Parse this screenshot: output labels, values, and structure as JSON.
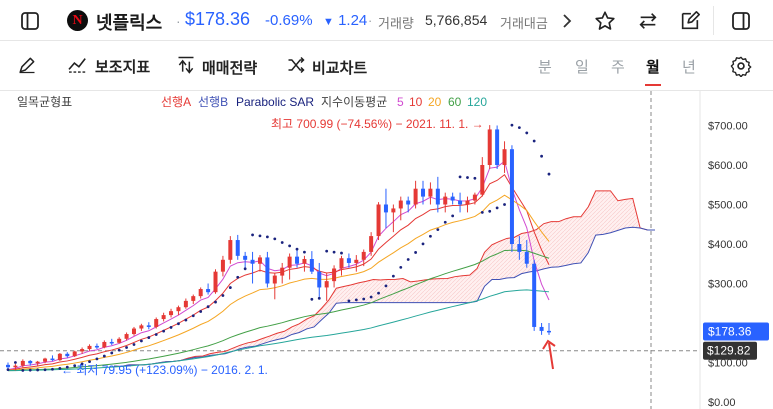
{
  "header": {
    "stock_name": "넷플릭스",
    "price": "$178.36",
    "change_pct": "-0.69%",
    "change_arrow": "▼",
    "change_abs": "1.24",
    "dot": "·",
    "volume_label": "거래량",
    "volume_value": "5,766,854",
    "amount_label": "거래대금",
    "logo_letter": "N"
  },
  "toolbar": {
    "indicator_label": "보조지표",
    "strategy_label": "매매전략",
    "compare_label": "비교차트",
    "periods": [
      "분",
      "일",
      "주",
      "월",
      "년"
    ],
    "active_period": "월"
  },
  "chart": {
    "ichimoku_title": "일목균형표",
    "leading_a": "선행A",
    "leading_b": "선행B",
    "sar_label": "Parabolic SAR",
    "ema_label": "지수이동평균",
    "ema_periods": [
      "5",
      "10",
      "20",
      "60",
      "120"
    ],
    "high_annotation": "최고 700.99 (−74.56%) − 2021. 11. 1. →",
    "low_annotation": "← 최저 79.95 (+123.09%) − 2016. 2. 1.",
    "price_badge": "$178.36",
    "crosshair_badge": "$129.82",
    "y_ticks": [
      "$700.00",
      "$600.00",
      "$500.00",
      "$400.00",
      "$300.00",
      "$100.00",
      "$0.00"
    ]
  },
  "colors": {
    "up": "#e53935",
    "down": "#2962ff",
    "accent": "#2962ff",
    "ema5": "#d14bd1",
    "ema10": "#e53935",
    "ema20": "#f5a623",
    "ema60": "#43a047",
    "ema120": "#26a69a",
    "leading_a": "#e53935",
    "leading_b": "#3f51b5",
    "sar": "#1a237e"
  },
  "chart_data": {
    "type": "candlestick",
    "period": "monthly",
    "ylim": [
      0,
      760
    ],
    "y_ticks": [
      0,
      100,
      300,
      400,
      500,
      600,
      700
    ],
    "high": {
      "value": 700.99,
      "date": "2021-11-01"
    },
    "low": {
      "value": 79.95,
      "date": "2016-02-01"
    },
    "last": 178.36,
    "crosshair": 129.82,
    "candles_ohlc": [
      [
        94,
        100,
        82,
        88
      ],
      [
        88,
        96,
        80,
        92
      ],
      [
        92,
        108,
        88,
        104
      ],
      [
        104,
        106,
        92,
        98
      ],
      [
        98,
        104,
        90,
        102
      ],
      [
        102,
        112,
        98,
        110
      ],
      [
        110,
        118,
        104,
        106
      ],
      [
        106,
        124,
        104,
        122
      ],
      [
        122,
        126,
        112,
        116
      ],
      [
        116,
        130,
        114,
        128
      ],
      [
        128,
        138,
        122,
        134
      ],
      [
        134,
        146,
        130,
        142
      ],
      [
        142,
        148,
        134,
        138
      ],
      [
        138,
        156,
        136,
        152
      ],
      [
        152,
        160,
        144,
        150
      ],
      [
        150,
        164,
        148,
        160
      ],
      [
        160,
        176,
        156,
        172
      ],
      [
        172,
        190,
        168,
        186
      ],
      [
        186,
        198,
        180,
        194
      ],
      [
        194,
        202,
        184,
        190
      ],
      [
        190,
        214,
        186,
        210
      ],
      [
        210,
        226,
        204,
        220
      ],
      [
        220,
        236,
        214,
        230
      ],
      [
        230,
        244,
        220,
        240
      ],
      [
        240,
        262,
        236,
        256
      ],
      [
        256,
        272,
        248,
        268
      ],
      [
        268,
        290,
        262,
        286
      ],
      [
        286,
        300,
        272,
        278
      ],
      [
        278,
        336,
        274,
        330
      ],
      [
        330,
        370,
        318,
        360
      ],
      [
        360,
        420,
        350,
        410
      ],
      [
        410,
        423,
        360,
        370
      ],
      [
        370,
        380,
        340,
        360
      ],
      [
        360,
        380,
        300,
        350
      ],
      [
        350,
        372,
        330,
        366
      ],
      [
        366,
        380,
        290,
        300
      ],
      [
        300,
        326,
        260,
        320
      ],
      [
        320,
        352,
        300,
        340
      ],
      [
        340,
        376,
        310,
        368
      ],
      [
        368,
        386,
        340,
        350
      ],
      [
        350,
        370,
        330,
        362
      ],
      [
        362,
        382,
        324,
        330
      ],
      [
        330,
        352,
        266,
        290
      ],
      [
        290,
        328,
        256,
        306
      ],
      [
        306,
        346,
        290,
        338
      ],
      [
        338,
        370,
        320,
        364
      ],
      [
        364,
        376,
        340,
        352
      ],
      [
        352,
        372,
        330,
        360
      ],
      [
        360,
        386,
        344,
        380
      ],
      [
        380,
        430,
        370,
        420
      ],
      [
        420,
        506,
        410,
        500
      ],
      [
        500,
        540,
        440,
        480
      ],
      [
        480,
        500,
        430,
        490
      ],
      [
        490,
        520,
        460,
        510
      ],
      [
        510,
        520,
        480,
        500
      ],
      [
        500,
        560,
        490,
        540
      ],
      [
        540,
        560,
        500,
        520
      ],
      [
        520,
        556,
        500,
        540
      ],
      [
        540,
        570,
        480,
        500
      ],
      [
        500,
        530,
        480,
        520
      ],
      [
        520,
        530,
        500,
        510
      ],
      [
        510,
        530,
        480,
        500
      ],
      [
        500,
        520,
        480,
        510
      ],
      [
        510,
        530,
        500,
        525
      ],
      [
        525,
        620,
        520,
        600
      ],
      [
        600,
        701,
        590,
        690
      ],
      [
        690,
        700,
        590,
        600
      ],
      [
        600,
        660,
        580,
        640
      ],
      [
        640,
        650,
        380,
        400
      ],
      [
        400,
        420,
        360,
        380
      ],
      [
        380,
        410,
        340,
        350
      ],
      [
        350,
        360,
        180,
        190
      ],
      [
        190,
        200,
        170,
        180
      ],
      [
        180,
        200,
        170,
        178.36
      ]
    ]
  }
}
